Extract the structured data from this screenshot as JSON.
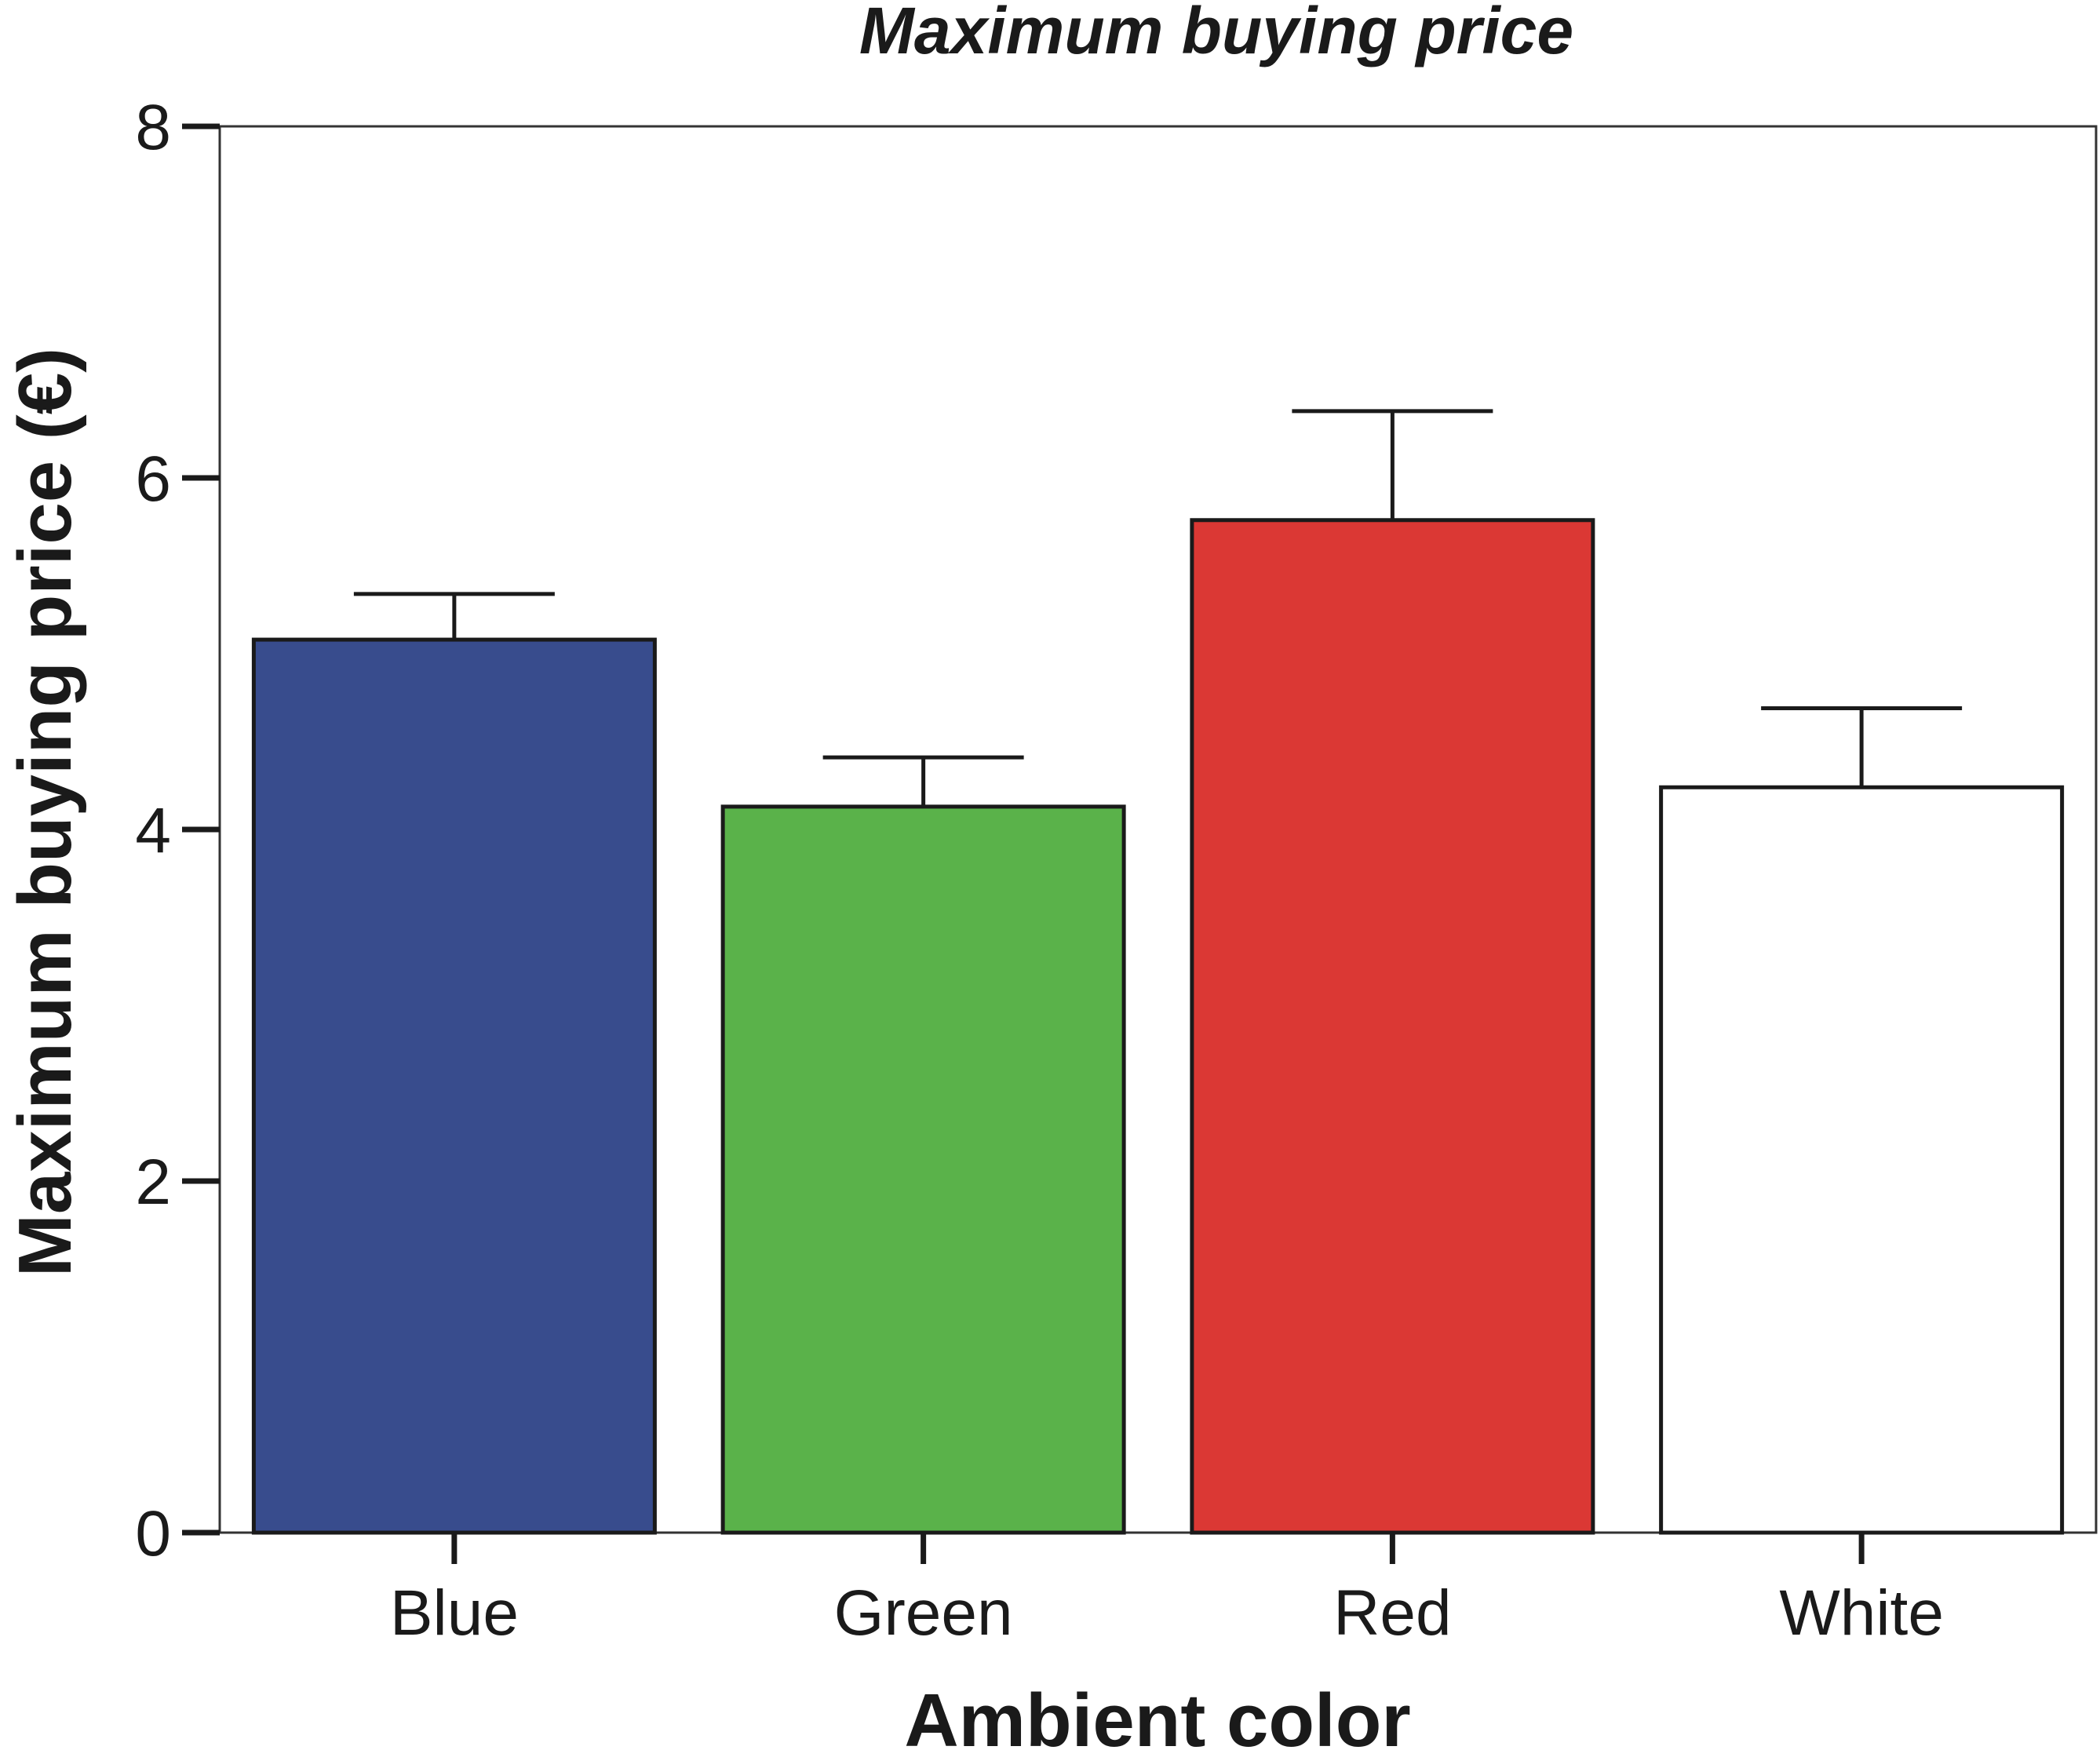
{
  "chart_data": {
    "type": "bar",
    "title": "Maximum buying price",
    "xlabel": "Ambient color",
    "ylabel": "Maximum buying price (€)",
    "categories": [
      "Blue",
      "Green",
      "Red",
      "White"
    ],
    "values": [
      5.08,
      4.13,
      5.76,
      4.24
    ],
    "error_upper": [
      5.34,
      4.41,
      6.38,
      4.69
    ],
    "colors": [
      "#384C8D",
      "#5AB24A",
      "#DB3834",
      "#FFFFFF"
    ],
    "ylim": [
      0,
      8
    ],
    "yticks": [
      0,
      2,
      4,
      6,
      8
    ],
    "grid": false,
    "legend": "none"
  }
}
